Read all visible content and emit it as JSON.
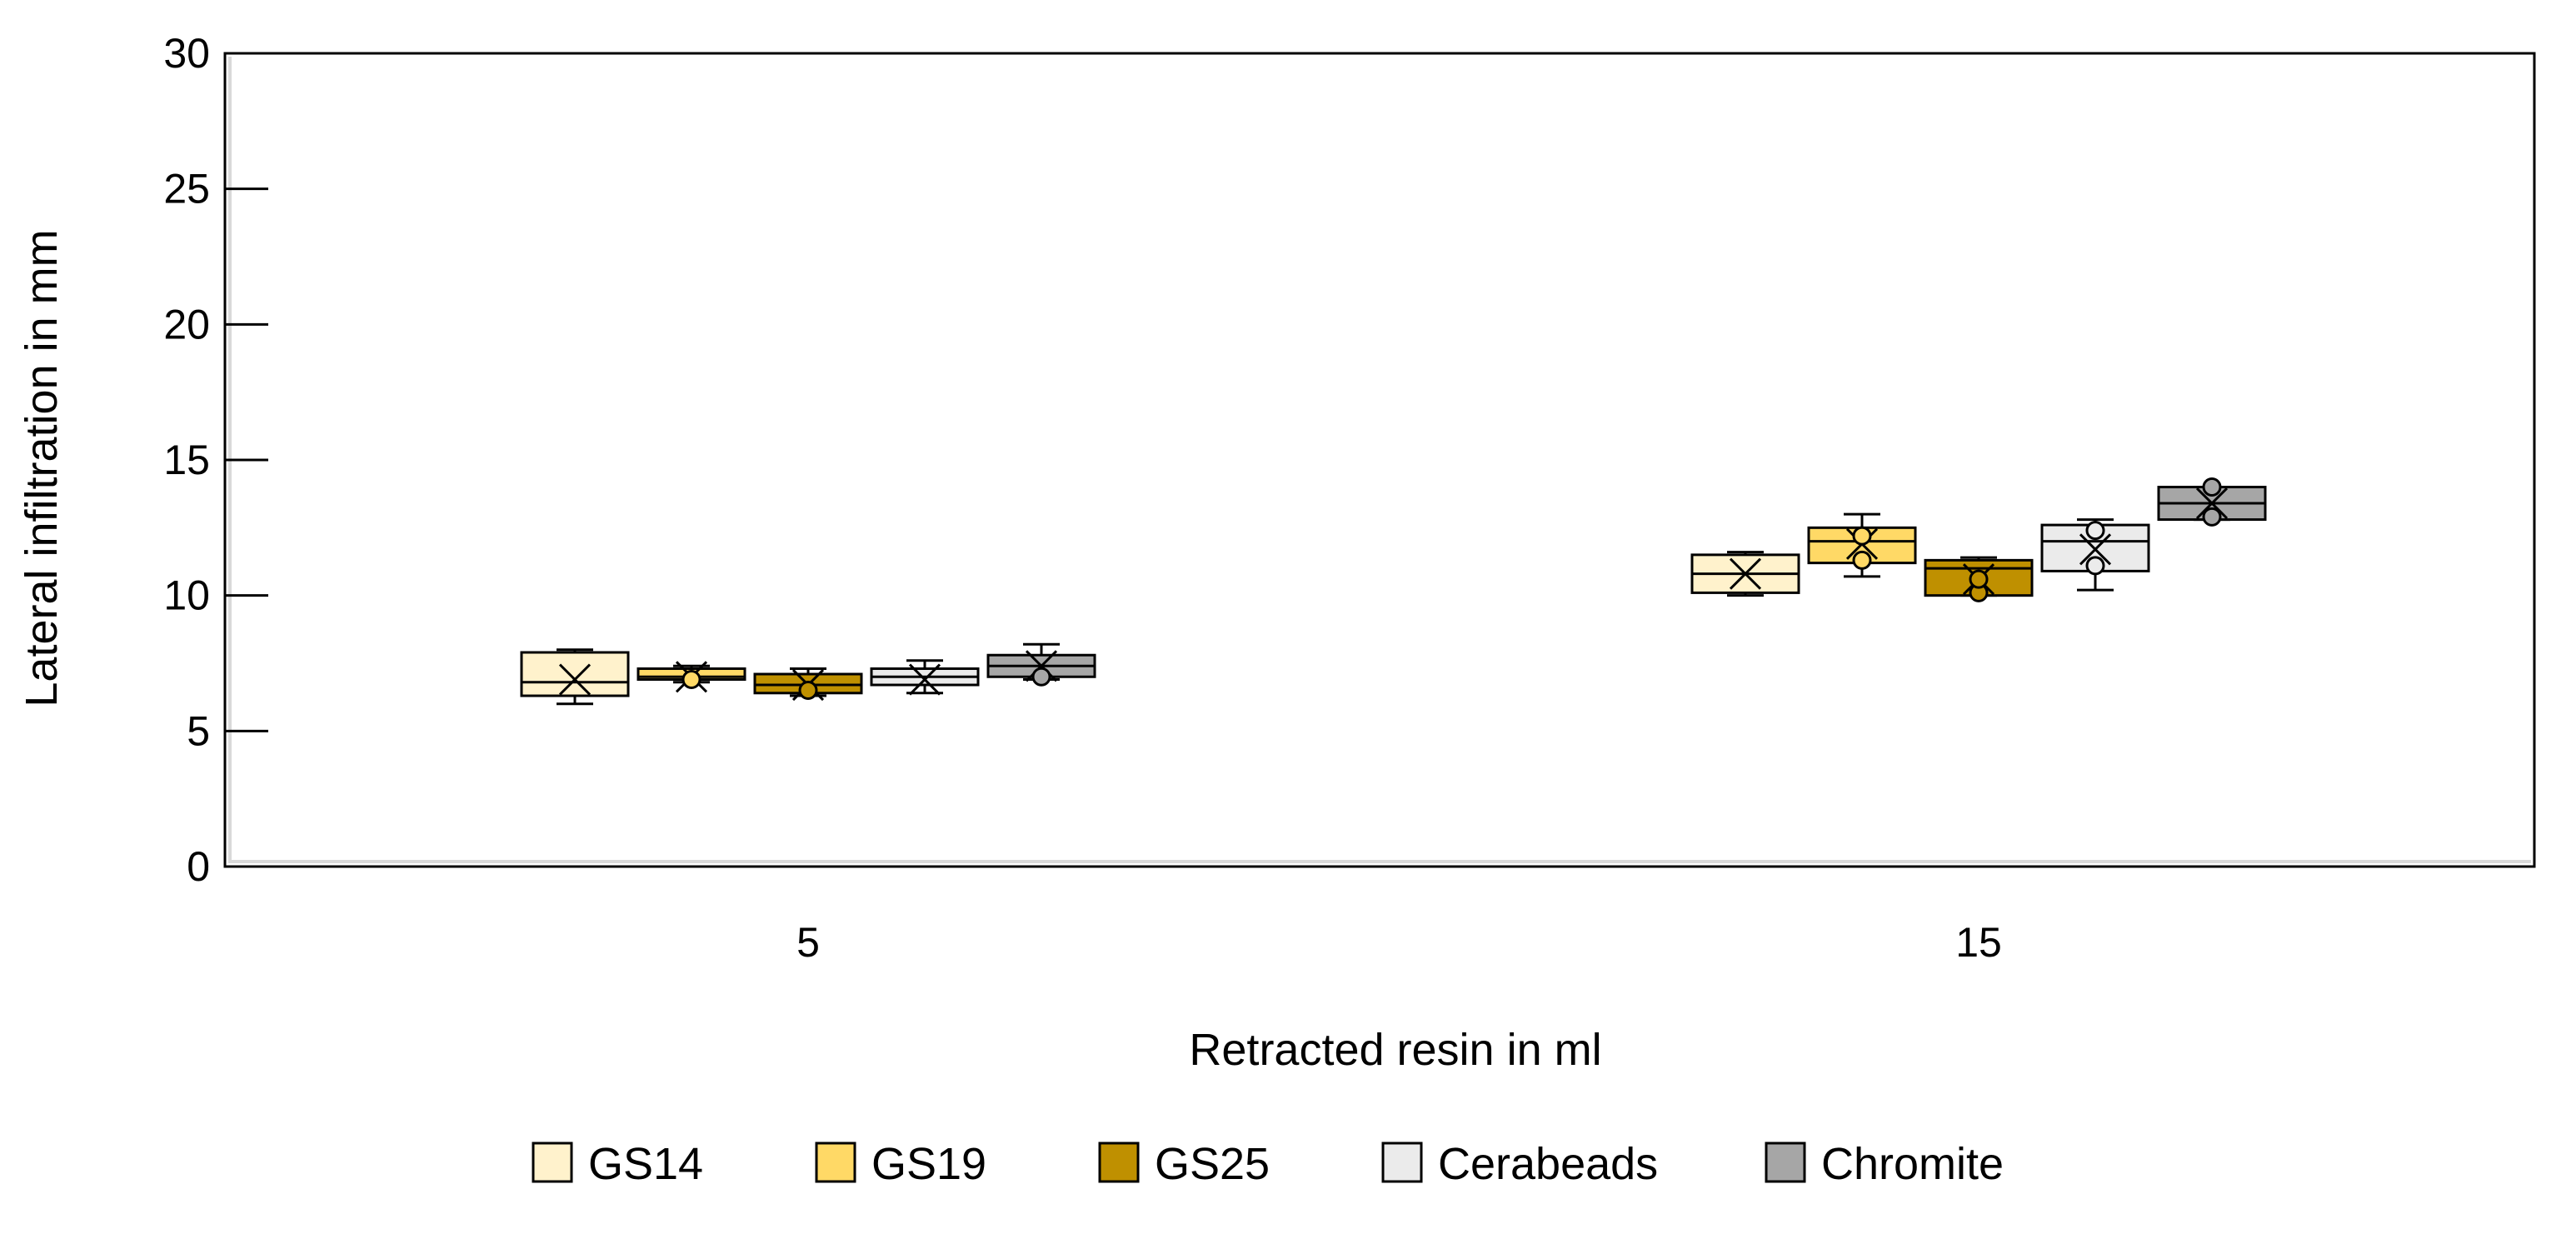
{
  "chart_data": {
    "type": "box",
    "title": "",
    "xlabel": "Retracted resin in ml",
    "ylabel": "Lateral infiltration in mm",
    "ylim": [
      0,
      30
    ],
    "yticks": [
      0,
      5,
      10,
      15,
      20,
      25,
      30
    ],
    "ytick_labels": [
      "0",
      "5",
      "10",
      "15",
      "20",
      "25",
      "30"
    ],
    "categories": [
      "5",
      "15"
    ],
    "legend_position": "bottom",
    "series": [
      {
        "name": "GS14",
        "color": "#fff2cc",
        "boxes": [
          {
            "min": 6.0,
            "q1": 6.3,
            "median": 6.8,
            "q3": 7.9,
            "max": 8.0,
            "mean": 6.9,
            "outliers": []
          },
          {
            "min": 10.0,
            "q1": 10.1,
            "median": 10.8,
            "q3": 11.5,
            "max": 11.6,
            "mean": 10.8,
            "outliers": []
          }
        ]
      },
      {
        "name": "GS19",
        "color": "#ffd966",
        "boxes": [
          {
            "min": 6.8,
            "q1": 6.9,
            "median": 7.0,
            "q3": 7.3,
            "max": 7.4,
            "mean": 7.0,
            "outliers": [
              6.9
            ]
          },
          {
            "min": 10.7,
            "q1": 11.2,
            "median": 12.0,
            "q3": 12.5,
            "max": 13.0,
            "mean": 11.9,
            "outliers": [
              11.3,
              12.2
            ]
          }
        ]
      },
      {
        "name": "GS25",
        "color": "#bf9000",
        "boxes": [
          {
            "min": 6.3,
            "q1": 6.4,
            "median": 6.7,
            "q3": 7.1,
            "max": 7.3,
            "mean": 6.7,
            "outliers": [
              6.5
            ]
          },
          {
            "min": 10.0,
            "q1": 10.0,
            "median": 11.0,
            "q3": 11.3,
            "max": 11.4,
            "mean": 10.6,
            "outliers": [
              10.1,
              10.6
            ]
          }
        ]
      },
      {
        "name": "Cerabeads",
        "color": "#ebebeb",
        "boxes": [
          {
            "min": 6.4,
            "q1": 6.7,
            "median": 7.0,
            "q3": 7.3,
            "max": 7.6,
            "mean": 6.9,
            "outliers": []
          },
          {
            "min": 10.2,
            "q1": 10.9,
            "median": 12.0,
            "q3": 12.6,
            "max": 12.8,
            "mean": 11.7,
            "outliers": [
              11.1,
              12.4
            ]
          }
        ]
      },
      {
        "name": "Chromite",
        "color": "#a6a6a6",
        "boxes": [
          {
            "min": 6.9,
            "q1": 7.0,
            "median": 7.4,
            "q3": 7.8,
            "max": 8.2,
            "mean": 7.4,
            "outliers": [
              7.0
            ]
          },
          {
            "min": 12.8,
            "q1": 12.8,
            "median": 13.4,
            "q3": 14.0,
            "max": 14.0,
            "mean": 13.4,
            "outliers": [
              12.9,
              14.0
            ]
          }
        ]
      }
    ]
  }
}
